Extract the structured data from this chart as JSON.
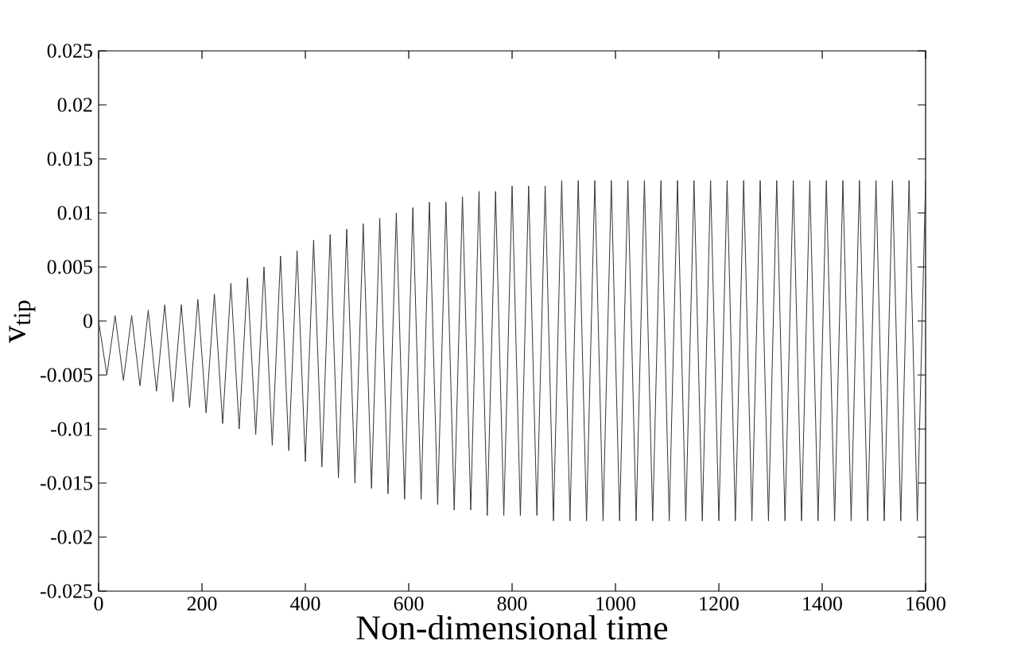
{
  "chart_data": {
    "type": "line",
    "xlabel": "Non-dimensional time",
    "ylabel": "v$_{tip}$",
    "xlim": [
      0,
      1600
    ],
    "ylim": [
      -0.025,
      0.025
    ],
    "xticks": [
      0,
      200,
      400,
      600,
      800,
      1000,
      1200,
      1400,
      1600
    ],
    "yticks": [
      -0.025,
      -0.02,
      -0.015,
      -0.01,
      -0.005,
      0,
      0.005,
      0.01,
      0.015,
      0.02,
      0.025
    ],
    "grid": false,
    "marker": "none",
    "line_style": "solid",
    "series": [
      {
        "color": "#333333",
        "x": [
          0,
          16,
          32,
          48,
          64,
          80,
          96,
          112,
          128,
          144,
          160,
          176,
          192,
          208,
          224,
          240,
          256,
          272,
          288,
          304,
          320,
          336,
          352,
          368,
          384,
          400,
          416,
          432,
          448,
          464,
          480,
          496,
          512,
          528,
          544,
          560,
          576,
          592,
          608,
          624,
          640,
          656,
          672,
          688,
          704,
          720,
          736,
          752,
          768,
          784,
          800,
          816,
          832,
          848,
          864,
          880,
          896,
          912,
          928,
          944,
          960,
          976,
          992,
          1008,
          1024,
          1040,
          1056,
          1072,
          1088,
          1104,
          1120,
          1136,
          1152,
          1168,
          1184,
          1200,
          1216,
          1232,
          1248,
          1264,
          1280,
          1296,
          1312,
          1328,
          1344,
          1360,
          1376,
          1392,
          1408,
          1424,
          1440,
          1456,
          1472,
          1488,
          1504,
          1520,
          1536,
          1552,
          1568,
          1584,
          1600
        ],
        "values": [
          0,
          -0.005,
          0.0005,
          -0.0055,
          0.0005,
          -0.006,
          0.001,
          -0.0065,
          0.0015,
          -0.0075,
          0.0015,
          -0.008,
          0.002,
          -0.0085,
          0.0025,
          -0.0095,
          0.0035,
          -0.01,
          0.004,
          -0.0105,
          0.005,
          -0.0115,
          0.006,
          -0.012,
          0.0065,
          -0.013,
          0.0075,
          -0.0135,
          0.008,
          -0.0145,
          0.0085,
          -0.015,
          0.009,
          -0.0155,
          0.0095,
          -0.016,
          0.01,
          -0.0165,
          0.0105,
          -0.0165,
          0.011,
          -0.017,
          0.011,
          -0.0175,
          0.0115,
          -0.0175,
          0.012,
          -0.018,
          0.012,
          -0.018,
          0.0125,
          -0.018,
          0.0125,
          -0.018,
          0.0125,
          -0.0185,
          0.013,
          -0.0185,
          0.013,
          -0.0185,
          0.013,
          -0.0185,
          0.013,
          -0.0185,
          0.013,
          -0.0185,
          0.013,
          -0.0185,
          0.013,
          -0.0185,
          0.013,
          -0.0185,
          0.013,
          -0.0185,
          0.013,
          -0.0185,
          0.013,
          -0.0185,
          0.013,
          -0.0185,
          0.013,
          -0.0185,
          0.013,
          -0.0185,
          0.013,
          -0.0185,
          0.013,
          -0.0185,
          0.013,
          -0.0185,
          0.013,
          -0.0185,
          0.013,
          -0.0185,
          0.013,
          -0.0185,
          0.013,
          -0.0185,
          0.013,
          -0.0185,
          0.013
        ]
      }
    ]
  }
}
